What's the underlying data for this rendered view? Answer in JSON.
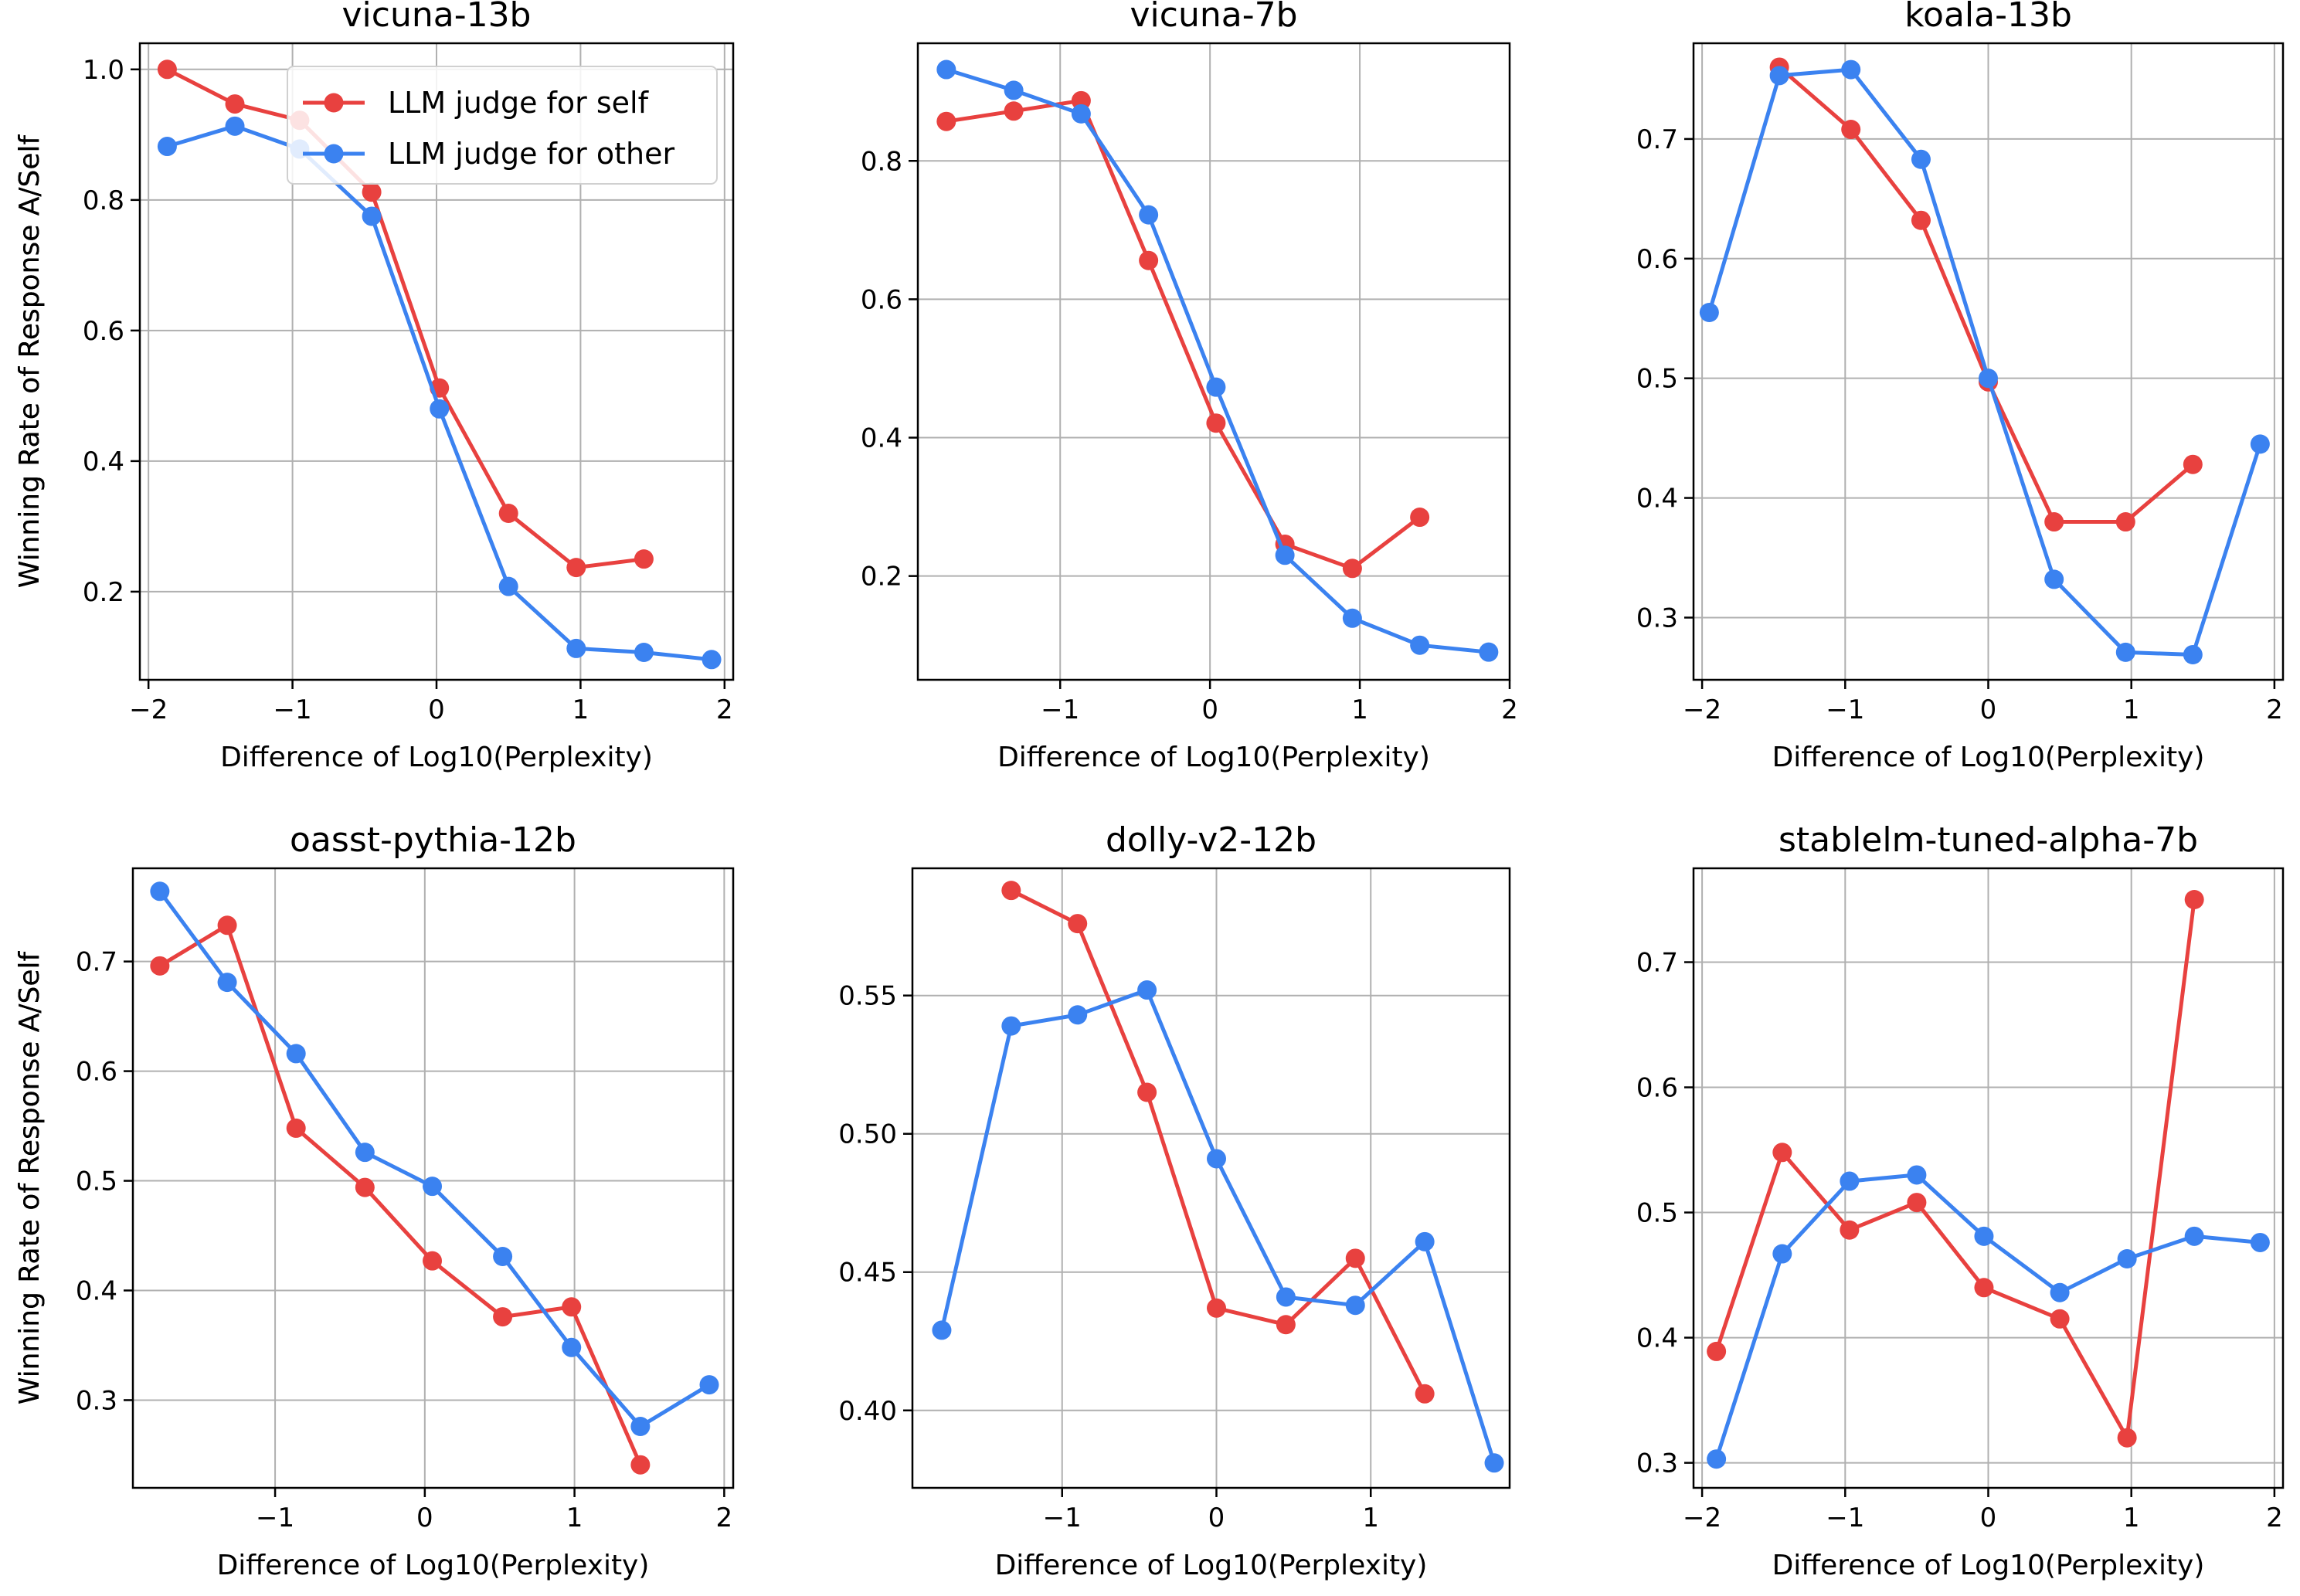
{
  "colors": {
    "self": "#e8413f",
    "other": "#3b82f0"
  },
  "legend": {
    "self_label": "LLM judge for self",
    "other_label": "LLM judge for other"
  },
  "chart_data": [
    {
      "type": "line",
      "title": "vicuna-13b",
      "xlabel": "Difference of Log10(Perplexity)",
      "ylabel": "Winning Rate of Response A/Self",
      "xlim": [
        -2.06,
        2.06
      ],
      "ylim": [
        0.065,
        1.04
      ],
      "xticks": [
        -2,
        -1,
        0,
        1,
        2
      ],
      "xtick_labels": [
        "−2",
        "−1",
        "0",
        "1",
        "2"
      ],
      "yticks": [
        0.2,
        0.4,
        0.6,
        0.8,
        1.0
      ],
      "ytick_labels": [
        "0.2",
        "0.4",
        "0.6",
        "0.8",
        "1.0"
      ],
      "legend": true,
      "series": [
        {
          "name": "LLM judge for self",
          "x": [
            -1.87,
            -1.4,
            -0.95,
            -0.45,
            0.02,
            0.5,
            0.97,
            1.44
          ],
          "y": [
            1.0,
            0.947,
            0.922,
            0.812,
            0.512,
            0.32,
            0.237,
            0.25
          ]
        },
        {
          "name": "LLM judge for other",
          "x": [
            -1.87,
            -1.4,
            -0.95,
            -0.45,
            0.02,
            0.5,
            0.97,
            1.44,
            1.91
          ],
          "y": [
            0.882,
            0.913,
            0.878,
            0.775,
            0.48,
            0.208,
            0.113,
            0.107,
            0.096
          ]
        }
      ]
    },
    {
      "type": "line",
      "title": "vicuna-7b",
      "xlabel": "Difference of Log10(Perplexity)",
      "ylabel": "Winning Rate of Response A/Self",
      "xlim": [
        -1.95,
        2.0
      ],
      "ylim": [
        0.05,
        0.97
      ],
      "xticks": [
        -1,
        0,
        1,
        2
      ],
      "xtick_labels": [
        "−1",
        "0",
        "1",
        "2"
      ],
      "yticks": [
        0.2,
        0.4,
        0.6,
        0.8
      ],
      "ytick_labels": [
        "0.2",
        "0.4",
        "0.6",
        "0.8"
      ],
      "legend": false,
      "series": [
        {
          "name": "LLM judge for self",
          "x": [
            -1.76,
            -1.31,
            -0.86,
            -0.41,
            0.04,
            0.5,
            0.95,
            1.4
          ],
          "y": [
            0.857,
            0.872,
            0.887,
            0.656,
            0.421,
            0.246,
            0.211,
            0.285
          ]
        },
        {
          "name": "LLM judge for other",
          "x": [
            -1.76,
            -1.31,
            -0.86,
            -0.41,
            0.04,
            0.5,
            0.95,
            1.4,
            1.86
          ],
          "y": [
            0.932,
            0.902,
            0.868,
            0.722,
            0.473,
            0.23,
            0.139,
            0.1,
            0.09
          ]
        }
      ]
    },
    {
      "type": "line",
      "title": "koala-13b",
      "xlabel": "Difference of Log10(Perplexity)",
      "ylabel": "Winning Rate of Response A/Self",
      "xlim": [
        -2.06,
        2.06
      ],
      "ylim": [
        0.248,
        0.78
      ],
      "xticks": [
        -2,
        -1,
        0,
        1,
        2
      ],
      "xtick_labels": [
        "−2",
        "−1",
        "0",
        "1",
        "2"
      ],
      "yticks": [
        0.3,
        0.4,
        0.5,
        0.6,
        0.7
      ],
      "ytick_labels": [
        "0.3",
        "0.4",
        "0.5",
        "0.6",
        "0.7"
      ],
      "legend": false,
      "series": [
        {
          "name": "LLM judge for self",
          "x": [
            -1.46,
            -0.96,
            -0.47,
            0.0,
            0.46,
            0.96,
            1.43
          ],
          "y": [
            0.76,
            0.708,
            0.632,
            0.497,
            0.38,
            0.38,
            0.428
          ]
        },
        {
          "name": "LLM judge for other",
          "x": [
            -1.95,
            -1.46,
            -0.96,
            -0.47,
            0.0,
            0.46,
            0.96,
            1.43,
            1.9
          ],
          "y": [
            0.555,
            0.753,
            0.758,
            0.683,
            0.5,
            0.332,
            0.271,
            0.269,
            0.445
          ]
        }
      ]
    },
    {
      "type": "line",
      "title": "oasst-pythia-12b",
      "xlabel": "Difference of Log10(Perplexity)",
      "ylabel": "Winning Rate of Response A/Self",
      "xlim": [
        -1.95,
        2.06
      ],
      "ylim": [
        0.22,
        0.785
      ],
      "xticks": [
        -1,
        0,
        1,
        2
      ],
      "xtick_labels": [
        "−1",
        "0",
        "1",
        "2"
      ],
      "yticks": [
        0.3,
        0.4,
        0.5,
        0.6,
        0.7
      ],
      "ytick_labels": [
        "0.3",
        "0.4",
        "0.5",
        "0.6",
        "0.7"
      ],
      "legend": false,
      "series": [
        {
          "name": "LLM judge for self",
          "x": [
            -1.77,
            -1.32,
            -0.86,
            -0.4,
            0.05,
            0.52,
            0.98,
            1.44
          ],
          "y": [
            0.696,
            0.733,
            0.548,
            0.494,
            0.427,
            0.376,
            0.385,
            0.241
          ]
        },
        {
          "name": "LLM judge for other",
          "x": [
            -1.77,
            -1.32,
            -0.86,
            -0.4,
            0.05,
            0.52,
            0.98,
            1.44,
            1.9
          ],
          "y": [
            0.764,
            0.681,
            0.616,
            0.526,
            0.495,
            0.431,
            0.348,
            0.276,
            0.314
          ]
        }
      ]
    },
    {
      "type": "line",
      "title": "dolly-v2-12b",
      "xlabel": "Difference of Log10(Perplexity)",
      "ylabel": "Winning Rate of Response A/Self",
      "xlim": [
        -1.97,
        1.9
      ],
      "ylim": [
        0.372,
        0.596
      ],
      "xticks": [
        -1,
        0,
        1
      ],
      "xtick_labels": [
        "−1",
        "0",
        "1"
      ],
      "yticks": [
        0.4,
        0.45,
        0.5,
        0.55
      ],
      "ytick_labels": [
        "0.40",
        "0.45",
        "0.50",
        "0.55"
      ],
      "legend": false,
      "series": [
        {
          "name": "LLM judge for self",
          "x": [
            -1.33,
            -0.9,
            -0.45,
            0.0,
            0.45,
            0.9,
            1.35
          ],
          "y": [
            0.588,
            0.576,
            0.515,
            0.437,
            0.431,
            0.455,
            0.406
          ]
        },
        {
          "name": "LLM judge for other",
          "x": [
            -1.78,
            -1.33,
            -0.9,
            -0.45,
            0.0,
            0.45,
            0.9,
            1.35,
            1.8
          ],
          "y": [
            0.429,
            0.539,
            0.543,
            0.552,
            0.491,
            0.441,
            0.438,
            0.461,
            0.381
          ]
        }
      ]
    },
    {
      "type": "line",
      "title": "stablelm-tuned-alpha-7b",
      "xlabel": "Difference of Log10(Perplexity)",
      "ylabel": "Winning Rate of Response A/Self",
      "xlim": [
        -2.06,
        2.06
      ],
      "ylim": [
        0.28,
        0.775
      ],
      "xticks": [
        -2,
        -1,
        0,
        1,
        2
      ],
      "xtick_labels": [
        "−2",
        "−1",
        "0",
        "1",
        "2"
      ],
      "yticks": [
        0.3,
        0.4,
        0.5,
        0.6,
        0.7
      ],
      "ytick_labels": [
        "0.3",
        "0.4",
        "0.5",
        "0.6",
        "0.7"
      ],
      "legend": false,
      "series": [
        {
          "name": "LLM judge for self",
          "x": [
            -1.9,
            -1.44,
            -0.97,
            -0.5,
            -0.03,
            0.5,
            0.97,
            1.44
          ],
          "y": [
            0.389,
            0.548,
            0.486,
            0.508,
            0.44,
            0.415,
            0.32,
            0.75
          ]
        },
        {
          "name": "LLM judge for other",
          "x": [
            -1.9,
            -1.44,
            -0.97,
            -0.5,
            -0.03,
            0.5,
            0.97,
            1.44,
            1.9
          ],
          "y": [
            0.303,
            0.467,
            0.525,
            0.53,
            0.481,
            0.436,
            0.463,
            0.481,
            0.476
          ]
        }
      ]
    }
  ]
}
